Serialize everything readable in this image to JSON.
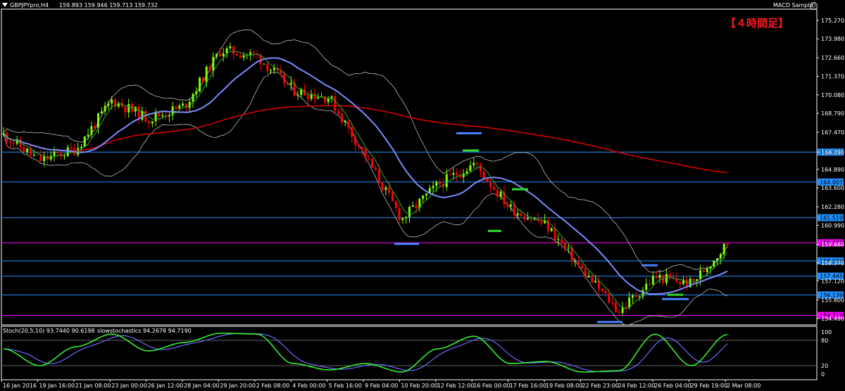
{
  "header": {
    "symbol": "GBPJPYpro,H4",
    "ohlc": "159.893 159.946 159.713 159.732",
    "expert": "MACD Sample"
  },
  "annotation": {
    "timeframe_note": "【４時間足】"
  },
  "oscillator": {
    "label": "Stoch(20,5,10) 93.7440 90.6198",
    "label2": "slowstochastics 94.2678 94.7190",
    "levels": [
      "100",
      "80",
      "20",
      "0"
    ]
  },
  "price_axis": {
    "labels": [
      "175.270",
      "173.980",
      "172.660",
      "171.370",
      "170.080",
      "168.790",
      "167.470",
      "166.090",
      "164.890",
      "163.600",
      "162.280",
      "160.990",
      "159.660",
      "158.370",
      "157.120",
      "155.800",
      "154.490"
    ]
  },
  "horizontal_lines": [
    {
      "price": "166.090",
      "color": "#1e90ff"
    },
    {
      "price": "164.007",
      "color": "#1e90ff"
    },
    {
      "price": "161.519",
      "color": "#1e90ff"
    },
    {
      "price": "159.772",
      "color": "#ff00ff"
    },
    {
      "price": "158.506",
      "color": "#1e90ff"
    },
    {
      "price": "157.445",
      "color": "#1e90ff"
    },
    {
      "price": "156.139",
      "color": "#1e90ff"
    },
    {
      "price": "154.713",
      "color": "#ff00ff"
    }
  ],
  "time_axis": {
    "labels": [
      "16 Jan 2016",
      "19 Jan 16:00",
      "21 Jan 08:00",
      "23 Jan 00:00",
      "26 Jan 12:00",
      "28 Jan 04:00",
      "29 Jan 20:00",
      "2 Feb 08:00",
      "4 Feb 00:00",
      "5 Feb 16:00",
      "9 Feb 04:00",
      "10 Feb 20:00",
      "12 Feb 12:00",
      "16 Feb 00:00",
      "17 Feb 16:00",
      "19 Feb 08:00",
      "22 Feb 23:00",
      "24 Feb 12:00",
      "26 Feb 04:00",
      "29 Feb 19:00",
      "2 Mar 08:00"
    ]
  },
  "colors": {
    "bull": "#7fff00",
    "bear": "#ff0000",
    "ma_long": "#e00000",
    "ma_mid": "#7b8cff",
    "ma_short": "#2eaa2e",
    "bands": "#bbbbbb",
    "stoch_main": "#33ff33",
    "stoch_signal": "#6a6aff"
  },
  "chart_data": {
    "type": "candlestick",
    "instrument": "GBPJPYpro",
    "timeframe": "H4",
    "price_range": [
      154.0,
      176.0
    ],
    "close_path": [
      {
        "t": "16 Jan 2016",
        "price": 167.3
      },
      {
        "t": "19 Jan 16:00",
        "price": 165.5
      },
      {
        "t": "21 Jan 08:00",
        "price": 166.3
      },
      {
        "t": "23 Jan 00:00",
        "price": 169.7
      },
      {
        "t": "26 Jan 12:00",
        "price": 168.4
      },
      {
        "t": "28 Jan 04:00",
        "price": 169.3
      },
      {
        "t": "29 Jan 20:00",
        "price": 173.2
      },
      {
        "t": "2 Feb 08:00",
        "price": 172.8
      },
      {
        "t": "4 Feb 00:00",
        "price": 170.4
      },
      {
        "t": "5 Feb 16:00",
        "price": 169.9
      },
      {
        "t": "9 Feb 04:00",
        "price": 165.8
      },
      {
        "t": "10 Feb 20:00",
        "price": 161.4
      },
      {
        "t": "12 Feb 12:00",
        "price": 163.8
      },
      {
        "t": "16 Feb 00:00",
        "price": 165.3
      },
      {
        "t": "17 Feb 16:00",
        "price": 162.2
      },
      {
        "t": "19 Feb 08:00",
        "price": 161.0
      },
      {
        "t": "22 Feb 23:00",
        "price": 157.8
      },
      {
        "t": "24 Feb 12:00",
        "price": 155.0
      },
      {
        "t": "26 Feb 04:00",
        "price": 157.4
      },
      {
        "t": "29 Feb 19:00",
        "price": 156.9
      },
      {
        "t": "2 Mar 08:00",
        "price": 159.73
      }
    ],
    "stoch_path": [
      {
        "t": "16 Jan 2016",
        "value": 60
      },
      {
        "t": "19 Jan 16:00",
        "value": 20
      },
      {
        "t": "21 Jan 08:00",
        "value": 65
      },
      {
        "t": "23 Jan 00:00",
        "value": 95
      },
      {
        "t": "26 Jan 12:00",
        "value": 55
      },
      {
        "t": "28 Jan 04:00",
        "value": 75
      },
      {
        "t": "29 Jan 20:00",
        "value": 97
      },
      {
        "t": "2 Feb 08:00",
        "value": 95
      },
      {
        "t": "4 Feb 00:00",
        "value": 25
      },
      {
        "t": "5 Feb 16:00",
        "value": 10
      },
      {
        "t": "9 Feb 04:00",
        "value": 25
      },
      {
        "t": "10 Feb 20:00",
        "value": 5
      },
      {
        "t": "12 Feb 12:00",
        "value": 60
      },
      {
        "t": "16 Feb 00:00",
        "value": 90
      },
      {
        "t": "17 Feb 16:00",
        "value": 25
      },
      {
        "t": "19 Feb 08:00",
        "value": 30
      },
      {
        "t": "22 Feb 23:00",
        "value": 5
      },
      {
        "t": "24 Feb 12:00",
        "value": 8
      },
      {
        "t": "26 Feb 04:00",
        "value": 95
      },
      {
        "t": "29 Feb 19:00",
        "value": 20
      },
      {
        "t": "2 Mar 08:00",
        "value": 94
      }
    ]
  }
}
